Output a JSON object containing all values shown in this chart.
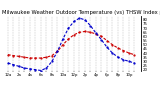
{
  "title": "Milwaukee Weather Outdoor Temperature (vs) THSW Index per Hour (Last 24 Hours)",
  "bg_color": "#ffffff",
  "grid_color": "#999999",
  "hours": [
    0,
    1,
    2,
    3,
    4,
    5,
    6,
    7,
    8,
    9,
    10,
    11,
    12,
    13,
    14,
    15,
    16,
    17,
    18,
    19,
    20,
    21,
    22,
    23
  ],
  "temp_values": [
    38,
    37,
    36,
    35,
    34,
    34,
    34,
    35,
    37,
    42,
    50,
    57,
    62,
    65,
    66,
    65,
    63,
    60,
    55,
    50,
    46,
    43,
    40,
    38
  ],
  "thsw_values": [
    28,
    26,
    24,
    22,
    21,
    20,
    19,
    22,
    30,
    42,
    57,
    70,
    78,
    82,
    80,
    73,
    64,
    56,
    47,
    40,
    35,
    32,
    30,
    28
  ],
  "temp_color": "#cc0000",
  "thsw_color": "#0000cc",
  "ylim": [
    18,
    85
  ],
  "yticks": [
    20,
    25,
    30,
    35,
    40,
    45,
    50,
    55,
    60,
    65,
    70,
    75,
    80
  ],
  "ytick_labels": [
    "20",
    "25",
    "30",
    "35",
    "40",
    "45",
    "50",
    "55",
    "60",
    "65",
    "70",
    "75",
    "80"
  ],
  "title_fontsize": 3.8,
  "tick_fontsize": 2.8,
  "line_width": 0.8
}
